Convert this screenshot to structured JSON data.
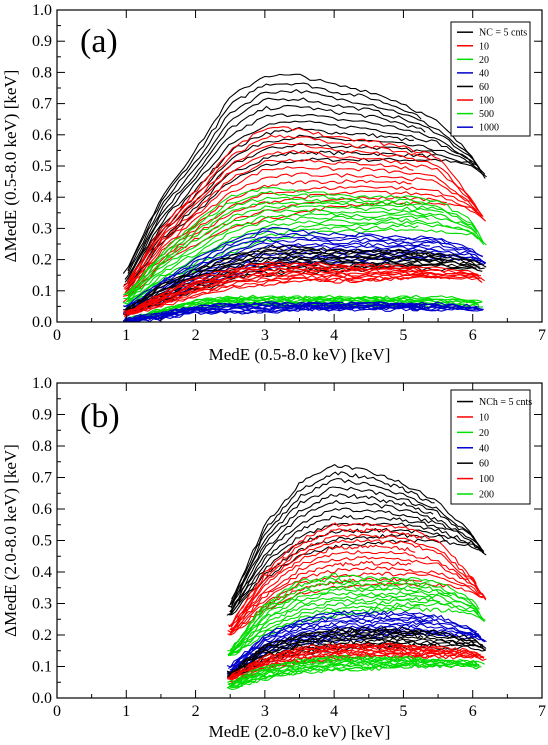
{
  "chart_data": [
    {
      "type": "line",
      "panel_label": "(a)",
      "xlabel": "MedE (0.5-8.0 keV) [keV]",
      "ylabel": "ΔMedE (0.5-8.0 keV) [keV]",
      "xlim": [
        0,
        7
      ],
      "ylim": [
        0,
        1.0
      ],
      "x_ticks": [
        "0",
        "1",
        "2",
        "3",
        "4",
        "5",
        "6",
        "7"
      ],
      "y_ticks": [
        "0.0",
        "0.1",
        "0.2",
        "0.3",
        "0.4",
        "0.5",
        "0.6",
        "0.7",
        "0.8",
        "0.9",
        "1.0"
      ],
      "grid": false,
      "legend_position": "top-right",
      "series": [
        {
          "name": "NC = 5 cnts",
          "color": "#000000",
          "x_start": 0.95,
          "x_end": 6.2,
          "values_at": {
            "x": [
              1.0,
              1.5,
              2.0,
              2.5,
              3.0,
              3.5,
              4.0,
              4.5,
              5.0,
              5.5,
              6.0,
              6.2
            ],
            "y_upper": [
              0.16,
              0.4,
              0.55,
              0.72,
              0.79,
              0.79,
              0.76,
              0.74,
              0.7,
              0.64,
              0.53,
              0.46
            ],
            "y_lower": [
              0.1,
              0.25,
              0.35,
              0.45,
              0.5,
              0.52,
              0.52,
              0.52,
              0.52,
              0.52,
              0.5,
              0.46
            ]
          }
        },
        {
          "name": "10",
          "color": "#ff0000",
          "x_start": 0.95,
          "x_end": 6.2,
          "values_at": {
            "x": [
              1.0,
              1.5,
              2.0,
              2.5,
              3.0,
              3.5,
              4.0,
              4.5,
              5.0,
              5.5,
              6.0,
              6.2
            ],
            "y_upper": [
              0.12,
              0.3,
              0.42,
              0.55,
              0.62,
              0.62,
              0.59,
              0.58,
              0.56,
              0.53,
              0.39,
              0.32
            ],
            "y_lower": [
              0.07,
              0.18,
              0.25,
              0.3,
              0.33,
              0.35,
              0.37,
              0.38,
              0.38,
              0.38,
              0.36,
              0.32
            ]
          }
        },
        {
          "name": "20",
          "color": "#00dd00",
          "x_start": 0.95,
          "x_end": 6.2,
          "values_at": {
            "x": [
              1.0,
              1.5,
              2.0,
              2.5,
              3.0,
              3.5,
              4.0,
              4.5,
              5.0,
              5.5,
              6.0,
              6.2
            ],
            "y_upper": [
              0.09,
              0.22,
              0.32,
              0.4,
              0.43,
              0.42,
              0.41,
              0.4,
              0.4,
              0.39,
              0.32,
              0.24
            ],
            "y_lower": [
              0.05,
              0.12,
              0.16,
              0.22,
              0.26,
              0.28,
              0.29,
              0.29,
              0.3,
              0.29,
              0.28,
              0.24
            ]
          }
        },
        {
          "name": "40",
          "color": "#0000cc",
          "x_start": 0.95,
          "x_end": 6.2,
          "values_at": {
            "x": [
              1.0,
              1.5,
              2.0,
              2.5,
              3.0,
              3.5,
              4.0,
              4.5,
              5.0,
              5.5,
              6.0,
              6.2
            ],
            "y_upper": [
              0.05,
              0.13,
              0.2,
              0.26,
              0.3,
              0.29,
              0.28,
              0.28,
              0.27,
              0.27,
              0.23,
              0.2
            ],
            "y_lower": [
              0.02,
              0.06,
              0.11,
              0.14,
              0.17,
              0.18,
              0.19,
              0.19,
              0.2,
              0.2,
              0.2,
              0.18
            ]
          }
        },
        {
          "name": "60",
          "color": "#000000",
          "x_start": 0.95,
          "x_end": 6.2,
          "values_at": {
            "x": [
              1.0,
              1.5,
              2.0,
              2.5,
              3.0,
              3.5,
              4.0,
              4.5,
              5.0,
              5.5,
              6.0,
              6.2
            ],
            "y_upper": [
              0.04,
              0.12,
              0.17,
              0.21,
              0.24,
              0.24,
              0.23,
              0.23,
              0.23,
              0.22,
              0.2,
              0.18
            ],
            "y_lower": [
              0.02,
              0.06,
              0.1,
              0.13,
              0.15,
              0.16,
              0.16,
              0.17,
              0.17,
              0.17,
              0.17,
              0.15
            ]
          }
        },
        {
          "name": "100",
          "color": "#ff0000",
          "x_start": 0.95,
          "x_end": 6.2,
          "values_at": {
            "x": [
              1.0,
              1.5,
              2.0,
              2.5,
              3.0,
              3.5,
              4.0,
              4.5,
              5.0,
              5.5,
              6.0,
              6.2
            ],
            "y_upper": [
              0.03,
              0.09,
              0.14,
              0.17,
              0.19,
              0.19,
              0.18,
              0.18,
              0.18,
              0.17,
              0.16,
              0.14
            ],
            "y_lower": [
              0.02,
              0.05,
              0.08,
              0.11,
              0.12,
              0.13,
              0.13,
              0.13,
              0.14,
              0.14,
              0.14,
              0.12
            ]
          }
        },
        {
          "name": "500",
          "color": "#00dd00",
          "x_start": 0.95,
          "x_end": 6.2,
          "values_at": {
            "x": [
              1.0,
              1.5,
              2.0,
              2.5,
              3.0,
              3.5,
              4.0,
              4.5,
              5.0,
              5.5,
              6.0,
              6.2
            ],
            "y_upper": [
              0.01,
              0.04,
              0.07,
              0.08,
              0.08,
              0.08,
              0.08,
              0.08,
              0.08,
              0.08,
              0.07,
              0.06
            ],
            "y_lower": [
              0.0,
              0.02,
              0.04,
              0.05,
              0.05,
              0.05,
              0.05,
              0.05,
              0.05,
              0.05,
              0.05,
              0.05
            ]
          }
        },
        {
          "name": "1000",
          "color": "#0000cc",
          "x_start": 0.95,
          "x_end": 6.2,
          "values_at": {
            "x": [
              1.0,
              1.5,
              2.0,
              2.5,
              3.0,
              3.5,
              4.0,
              4.5,
              5.0,
              5.5,
              6.0,
              6.2
            ],
            "y_upper": [
              0.01,
              0.03,
              0.05,
              0.06,
              0.06,
              0.06,
              0.06,
              0.06,
              0.06,
              0.06,
              0.05,
              0.05
            ],
            "y_lower": [
              0.0,
              0.01,
              0.03,
              0.03,
              0.03,
              0.04,
              0.04,
              0.04,
              0.04,
              0.04,
              0.04,
              0.04
            ]
          }
        }
      ]
    },
    {
      "type": "line",
      "panel_label": "(b)",
      "xlabel": "MedE (2.0-8.0 keV) [keV]",
      "ylabel": "ΔMedE (2.0-8.0 keV) [keV]",
      "xlim": [
        0,
        7
      ],
      "ylim": [
        0,
        1.0
      ],
      "x_ticks": [
        "0",
        "1",
        "2",
        "3",
        "4",
        "5",
        "6",
        "7"
      ],
      "y_ticks": [
        "0.0",
        "0.1",
        "0.2",
        "0.3",
        "0.4",
        "0.5",
        "0.6",
        "0.7",
        "0.8",
        "0.9",
        "1.0"
      ],
      "grid": false,
      "legend_position": "top-right",
      "series": [
        {
          "name": "NCh = 5 cnts",
          "color": "#000000",
          "x_start": 2.45,
          "x_end": 6.2,
          "values_at": {
            "x": [
              2.5,
              3.0,
              3.5,
              4.0,
              4.5,
              5.0,
              5.5,
              6.0,
              6.2
            ],
            "y_upper": [
              0.3,
              0.55,
              0.68,
              0.74,
              0.72,
              0.68,
              0.62,
              0.52,
              0.45
            ],
            "y_lower": [
              0.26,
              0.38,
              0.45,
              0.48,
              0.49,
              0.5,
              0.5,
              0.48,
              0.45
            ]
          }
        },
        {
          "name": "10",
          "color": "#ff0000",
          "x_start": 2.45,
          "x_end": 6.2,
          "values_at": {
            "x": [
              2.5,
              3.0,
              3.5,
              4.0,
              4.5,
              5.0,
              5.5,
              6.0,
              6.2
            ],
            "y_upper": [
              0.23,
              0.4,
              0.5,
              0.55,
              0.55,
              0.54,
              0.5,
              0.38,
              0.31
            ],
            "y_lower": [
              0.2,
              0.28,
              0.33,
              0.35,
              0.36,
              0.36,
              0.36,
              0.34,
              0.31
            ]
          }
        },
        {
          "name": "20",
          "color": "#00dd00",
          "x_start": 2.45,
          "x_end": 6.2,
          "values_at": {
            "x": [
              2.5,
              3.0,
              3.5,
              4.0,
              4.5,
              5.0,
              5.5,
              6.0,
              6.2
            ],
            "y_upper": [
              0.15,
              0.3,
              0.37,
              0.39,
              0.38,
              0.38,
              0.37,
              0.31,
              0.24
            ],
            "y_lower": [
              0.13,
              0.2,
              0.24,
              0.26,
              0.27,
              0.28,
              0.28,
              0.27,
              0.24
            ]
          }
        },
        {
          "name": "40",
          "color": "#0000cc",
          "x_start": 2.45,
          "x_end": 6.2,
          "values_at": {
            "x": [
              2.5,
              3.0,
              3.5,
              4.0,
              4.5,
              5.0,
              5.5,
              6.0,
              6.2
            ],
            "y_upper": [
              0.1,
              0.2,
              0.25,
              0.27,
              0.27,
              0.27,
              0.26,
              0.22,
              0.18
            ],
            "y_lower": [
              0.08,
              0.14,
              0.17,
              0.18,
              0.19,
              0.2,
              0.2,
              0.19,
              0.18
            ]
          }
        },
        {
          "name": "60",
          "color": "#000000",
          "x_start": 2.45,
          "x_end": 6.2,
          "values_at": {
            "x": [
              2.5,
              3.0,
              3.5,
              4.0,
              4.5,
              5.0,
              5.5,
              6.0,
              6.2
            ],
            "y_upper": [
              0.08,
              0.17,
              0.2,
              0.22,
              0.22,
              0.22,
              0.21,
              0.19,
              0.16
            ],
            "y_lower": [
              0.06,
              0.11,
              0.14,
              0.15,
              0.16,
              0.16,
              0.16,
              0.16,
              0.15
            ]
          }
        },
        {
          "name": "100",
          "color": "#ff0000",
          "x_start": 2.45,
          "x_end": 6.2,
          "values_at": {
            "x": [
              2.5,
              3.0,
              3.5,
              4.0,
              4.5,
              5.0,
              5.5,
              6.0,
              6.2
            ],
            "y_upper": [
              0.07,
              0.13,
              0.16,
              0.17,
              0.17,
              0.17,
              0.16,
              0.15,
              0.13
            ],
            "y_lower": [
              0.05,
              0.09,
              0.11,
              0.12,
              0.13,
              0.13,
              0.13,
              0.13,
              0.12
            ]
          }
        },
        {
          "name": "200",
          "color": "#00dd00",
          "x_start": 2.45,
          "x_end": 6.2,
          "values_at": {
            "x": [
              2.5,
              3.0,
              3.5,
              4.0,
              4.5,
              5.0,
              5.5,
              6.0,
              6.2
            ],
            "y_upper": [
              0.05,
              0.1,
              0.12,
              0.13,
              0.13,
              0.13,
              0.12,
              0.12,
              0.1
            ],
            "y_lower": [
              0.03,
              0.06,
              0.08,
              0.09,
              0.09,
              0.1,
              0.1,
              0.1,
              0.09
            ]
          }
        }
      ]
    }
  ]
}
